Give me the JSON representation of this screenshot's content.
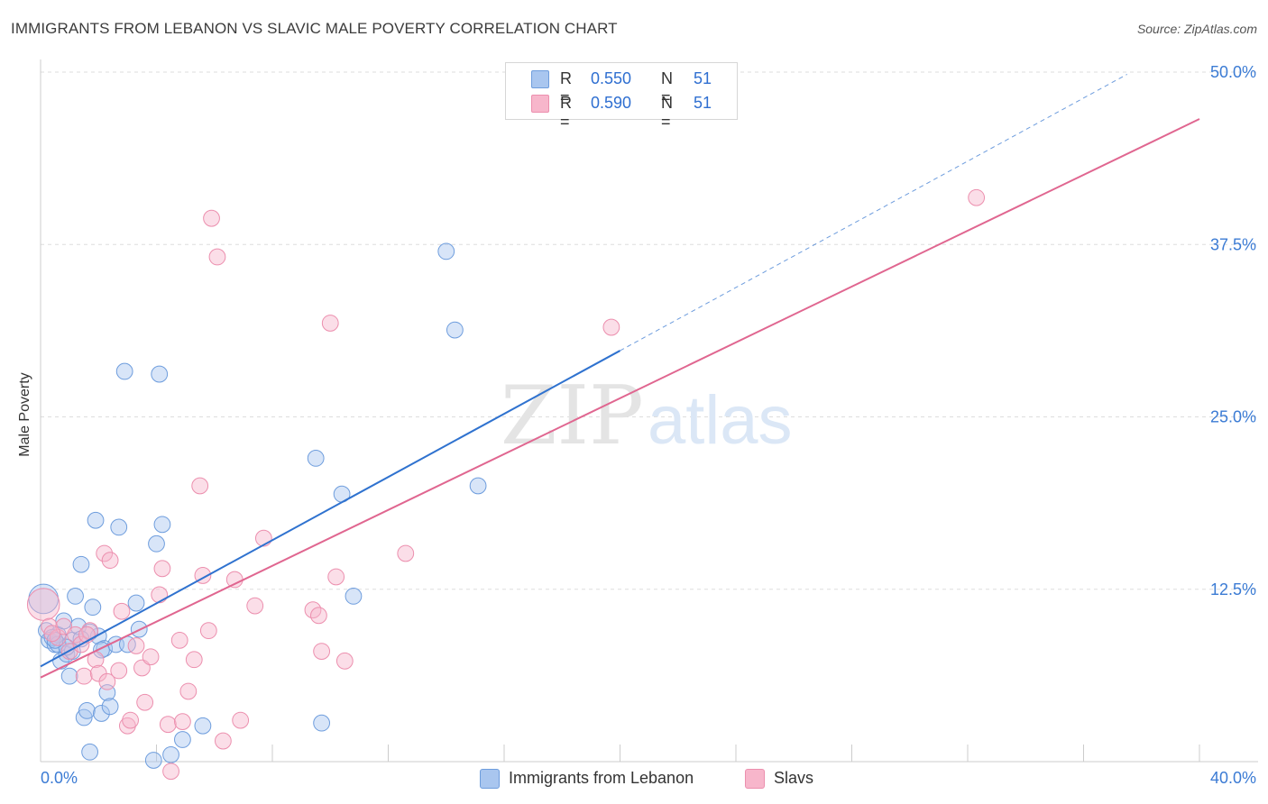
{
  "title": "IMMIGRANTS FROM LEBANON VS SLAVIC MALE POVERTY CORRELATION CHART",
  "source": "Source: ZipAtlas.com",
  "watermark": {
    "zip": "ZIP",
    "atlas": "atlas"
  },
  "legend": {
    "rows": [
      {
        "r_label": "R =",
        "r_value": "0.550",
        "n_label": "N =",
        "n_value": "51",
        "color": "#a9c6ef",
        "border": "#6e9ddd"
      },
      {
        "r_label": "R =",
        "r_value": "0.590",
        "n_label": "N =",
        "n_value": "51",
        "color": "#f7b6cb",
        "border": "#ec8fae"
      }
    ]
  },
  "bottom_legend": [
    {
      "label": "Immigrants from Lebanon",
      "color": "#a9c6ef",
      "border": "#6e9ddd"
    },
    {
      "label": "Slavs",
      "color": "#f7b6cb",
      "border": "#ec8fae"
    }
  ],
  "chart_data": {
    "type": "scatter",
    "title": "IMMIGRANTS FROM LEBANON VS SLAVIC MALE POVERTY CORRELATION CHART",
    "xlabel": "",
    "ylabel": "Male Poverty",
    "xlim": [
      0,
      40
    ],
    "ylim": [
      0,
      50
    ],
    "x_tick_labels": [
      "0.0%",
      "40.0%"
    ],
    "y_tick_labels": [
      {
        "value": 12.5,
        "label": "12.5%"
      },
      {
        "value": 25.0,
        "label": "25.0%"
      },
      {
        "value": 37.5,
        "label": "37.5%"
      },
      {
        "value": 50.0,
        "label": "50.0%"
      }
    ],
    "grid": true,
    "series": [
      {
        "name": "Immigrants from Lebanon",
        "color": "#a9c6ef",
        "stroke": "#6e9ddd",
        "line_color": "#2f72cf",
        "trend": {
          "x0": 0,
          "y0": 6.9,
          "x1": 20,
          "y1": 29.8,
          "dash_to_x": 37.5
        },
        "points": [
          [
            0.1,
            11.8,
            22
          ],
          [
            0.2,
            9.5,
            12
          ],
          [
            0.3,
            8.8,
            12
          ],
          [
            0.5,
            8.5,
            12
          ],
          [
            0.6,
            9.2,
            12
          ],
          [
            0.7,
            7.3,
            12
          ],
          [
            0.8,
            10.2,
            12
          ],
          [
            0.9,
            7.8,
            12
          ],
          [
            1.0,
            6.2,
            12
          ],
          [
            1.1,
            8.8,
            12
          ],
          [
            1.2,
            12.0,
            12
          ],
          [
            1.3,
            9.8,
            12
          ],
          [
            1.4,
            14.3,
            12
          ],
          [
            1.5,
            3.2,
            12
          ],
          [
            1.6,
            3.7,
            12
          ],
          [
            1.7,
            0.7,
            12
          ],
          [
            1.8,
            11.2,
            12
          ],
          [
            1.9,
            17.5,
            12
          ],
          [
            2.0,
            9.1,
            12
          ],
          [
            2.1,
            3.5,
            12
          ],
          [
            2.2,
            8.2,
            12
          ],
          [
            2.3,
            5.0,
            12
          ],
          [
            2.4,
            4.0,
            12
          ],
          [
            2.6,
            8.5,
            12
          ],
          [
            2.7,
            17.0,
            12
          ],
          [
            2.9,
            28.3,
            12
          ],
          [
            3.0,
            8.5,
            12
          ],
          [
            3.3,
            11.5,
            12
          ],
          [
            3.4,
            9.6,
            12
          ],
          [
            3.9,
            0.1,
            12
          ],
          [
            4.0,
            15.8,
            12
          ],
          [
            4.1,
            28.1,
            12
          ],
          [
            4.2,
            17.2,
            12
          ],
          [
            4.5,
            0.5,
            12
          ],
          [
            4.9,
            1.6,
            12
          ],
          [
            5.6,
            2.6,
            12
          ],
          [
            9.5,
            22.0,
            12
          ],
          [
            9.7,
            2.8,
            12
          ],
          [
            10.4,
            19.4,
            12
          ],
          [
            10.8,
            12.0,
            12
          ],
          [
            14.0,
            37.0,
            12
          ],
          [
            14.3,
            31.3,
            12
          ],
          [
            15.1,
            20.0,
            12
          ],
          [
            0.4,
            9.0,
            12
          ],
          [
            0.6,
            8.5,
            12
          ],
          [
            1.1,
            8.0,
            12
          ],
          [
            1.7,
            9.4,
            12
          ],
          [
            0.9,
            8.3,
            12
          ],
          [
            2.1,
            8.1,
            12
          ],
          [
            0.5,
            8.8,
            12
          ],
          [
            1.4,
            8.9,
            12
          ]
        ]
      },
      {
        "name": "Slavs",
        "color": "#f7b6cb",
        "stroke": "#ec8fae",
        "line_color": "#e06690",
        "trend": {
          "x0": 0,
          "y0": 6.1,
          "x1": 40,
          "y1": 46.6
        },
        "points": [
          [
            0.1,
            11.4,
            24
          ],
          [
            0.3,
            9.8,
            12
          ],
          [
            0.6,
            9.0,
            12
          ],
          [
            0.8,
            9.8,
            12
          ],
          [
            1.0,
            8.0,
            12
          ],
          [
            1.2,
            9.2,
            12
          ],
          [
            1.4,
            8.5,
            12
          ],
          [
            1.5,
            6.2,
            12
          ],
          [
            1.7,
            9.5,
            12
          ],
          [
            1.9,
            7.4,
            12
          ],
          [
            2.0,
            6.4,
            12
          ],
          [
            2.2,
            15.1,
            12
          ],
          [
            2.3,
            5.8,
            12
          ],
          [
            2.4,
            14.6,
            12
          ],
          [
            2.7,
            6.6,
            12
          ],
          [
            2.8,
            10.9,
            12
          ],
          [
            3.0,
            2.6,
            12
          ],
          [
            3.1,
            3.0,
            12
          ],
          [
            3.3,
            8.4,
            12
          ],
          [
            3.5,
            6.8,
            12
          ],
          [
            3.6,
            4.3,
            12
          ],
          [
            3.8,
            7.6,
            12
          ],
          [
            4.1,
            12.1,
            12
          ],
          [
            4.2,
            14.0,
            12
          ],
          [
            4.4,
            2.7,
            12
          ],
          [
            4.8,
            8.8,
            12
          ],
          [
            4.9,
            2.9,
            12
          ],
          [
            5.1,
            5.1,
            12
          ],
          [
            5.3,
            7.4,
            12
          ],
          [
            5.5,
            20.0,
            12
          ],
          [
            5.6,
            13.5,
            12
          ],
          [
            5.8,
            9.5,
            12
          ],
          [
            5.9,
            39.4,
            12
          ],
          [
            6.1,
            36.6,
            12
          ],
          [
            6.3,
            1.5,
            12
          ],
          [
            6.7,
            13.2,
            12
          ],
          [
            6.9,
            3.0,
            12
          ],
          [
            7.4,
            11.3,
            12
          ],
          [
            7.7,
            16.2,
            12
          ],
          [
            9.4,
            11.0,
            12
          ],
          [
            9.6,
            10.6,
            12
          ],
          [
            9.7,
            8.0,
            12
          ],
          [
            10.0,
            31.8,
            12
          ],
          [
            10.2,
            13.4,
            12
          ],
          [
            10.5,
            7.3,
            12
          ],
          [
            12.6,
            15.1,
            12
          ],
          [
            19.7,
            31.5,
            12
          ],
          [
            32.3,
            40.9,
            12
          ],
          [
            4.5,
            -0.7,
            12
          ],
          [
            1.6,
            9.2,
            12
          ],
          [
            0.4,
            9.3,
            12
          ]
        ]
      }
    ]
  }
}
